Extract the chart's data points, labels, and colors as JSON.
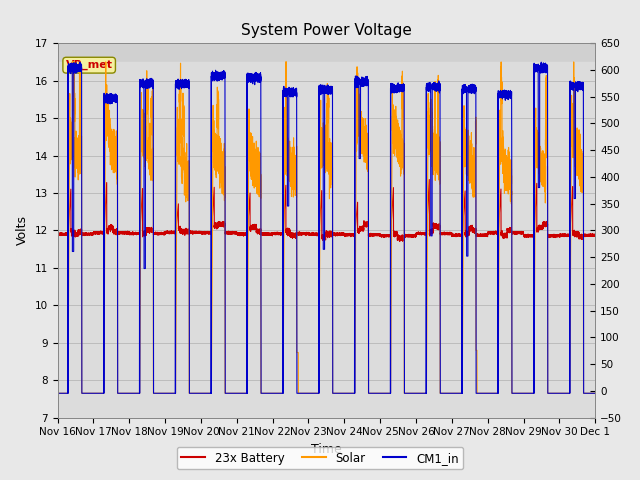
{
  "title": "System Power Voltage",
  "xlabel": "Time",
  "ylabel": "Volts",
  "ylim_left": [
    7.0,
    17.0
  ],
  "ylim_right": [
    -50,
    650
  ],
  "yticks_left": [
    7.0,
    8.0,
    9.0,
    10.0,
    11.0,
    12.0,
    13.0,
    14.0,
    15.0,
    16.0,
    17.0
  ],
  "yticks_right": [
    -50,
    0,
    50,
    100,
    150,
    200,
    250,
    300,
    350,
    400,
    450,
    500,
    550,
    600,
    650
  ],
  "xtick_labels": [
    "Nov 16",
    "Nov 17",
    "Nov 18",
    "Nov 19",
    "Nov 20",
    "Nov 21",
    "Nov 22",
    "Nov 23",
    "Nov 24",
    "Nov 25",
    "Nov 26",
    "Nov 27",
    "Nov 28",
    "Nov 29",
    "Nov 30",
    "Dec 1"
  ],
  "color_battery": "#cc0000",
  "color_solar": "#ff9900",
  "color_cm1": "#0000cc",
  "annotation_text": "VR_met",
  "annotation_color": "#cc0000",
  "background_color": "#e8e8e8",
  "plot_bg_color": "#dcdcdc",
  "grid_color": "#c8c8c8",
  "legend_labels": [
    "23x Battery",
    "Solar",
    "CM1_in"
  ],
  "title_fontsize": 11,
  "label_fontsize": 9,
  "tick_fontsize": 7.5,
  "n_days": 15,
  "battery_night": 11.9,
  "solar_night": 7.65,
  "cm1_night": 7.65,
  "cm1_day": 16.0
}
